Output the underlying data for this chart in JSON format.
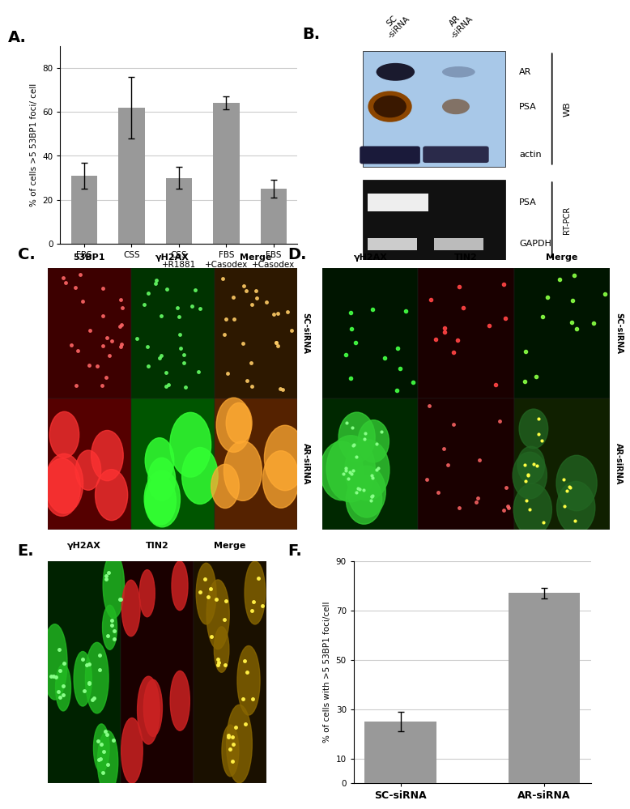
{
  "panel_A": {
    "categories": [
      "FBS",
      "CSS",
      "CSS\n+R1881",
      "FBS\n+Casodex",
      "FBS\n+Casodex\n+R1881"
    ],
    "values": [
      31,
      62,
      30,
      64,
      25
    ],
    "errors": [
      6,
      14,
      5,
      3,
      4
    ],
    "ylabel": "% of cells >5 53BP1 foci/ cell",
    "ylim": [
      0,
      90
    ],
    "yticks": [
      0,
      20,
      40,
      60,
      80
    ],
    "bar_color": "#999999"
  },
  "panel_F": {
    "categories": [
      "SC-siRNA",
      "AR-siRNA"
    ],
    "values": [
      25,
      77
    ],
    "errors": [
      4,
      2
    ],
    "ylabel": "% of cells with >5 53BP1 foci/cell",
    "ylim": [
      0,
      90
    ],
    "yticks": [
      0,
      10,
      30,
      50,
      70,
      90
    ],
    "bar_color": "#999999"
  },
  "panel_labels": [
    "A.",
    "B.",
    "C.",
    "D.",
    "E.",
    "F."
  ],
  "bar_color": "#999999",
  "bg_color": "#ffffff",
  "grid_color": "#cccccc",
  "col_labels_C": [
    "53BP1",
    "γH2AX",
    "Merge"
  ],
  "col_labels_D": [
    "γH2AX",
    "TIN2",
    "Merge"
  ],
  "col_labels_E": [
    "γH2AX",
    "TIN2",
    "Merge"
  ],
  "wb_col_labels": [
    "SC\n-siRNA",
    "AR\n-siRNA"
  ],
  "wb_row_labels": [
    "AR",
    "PSA",
    "actin"
  ],
  "pcr_row_labels": [
    "PSA",
    "GAPDH"
  ],
  "wb_label": "WB",
  "pcr_label": "RT-PCR"
}
